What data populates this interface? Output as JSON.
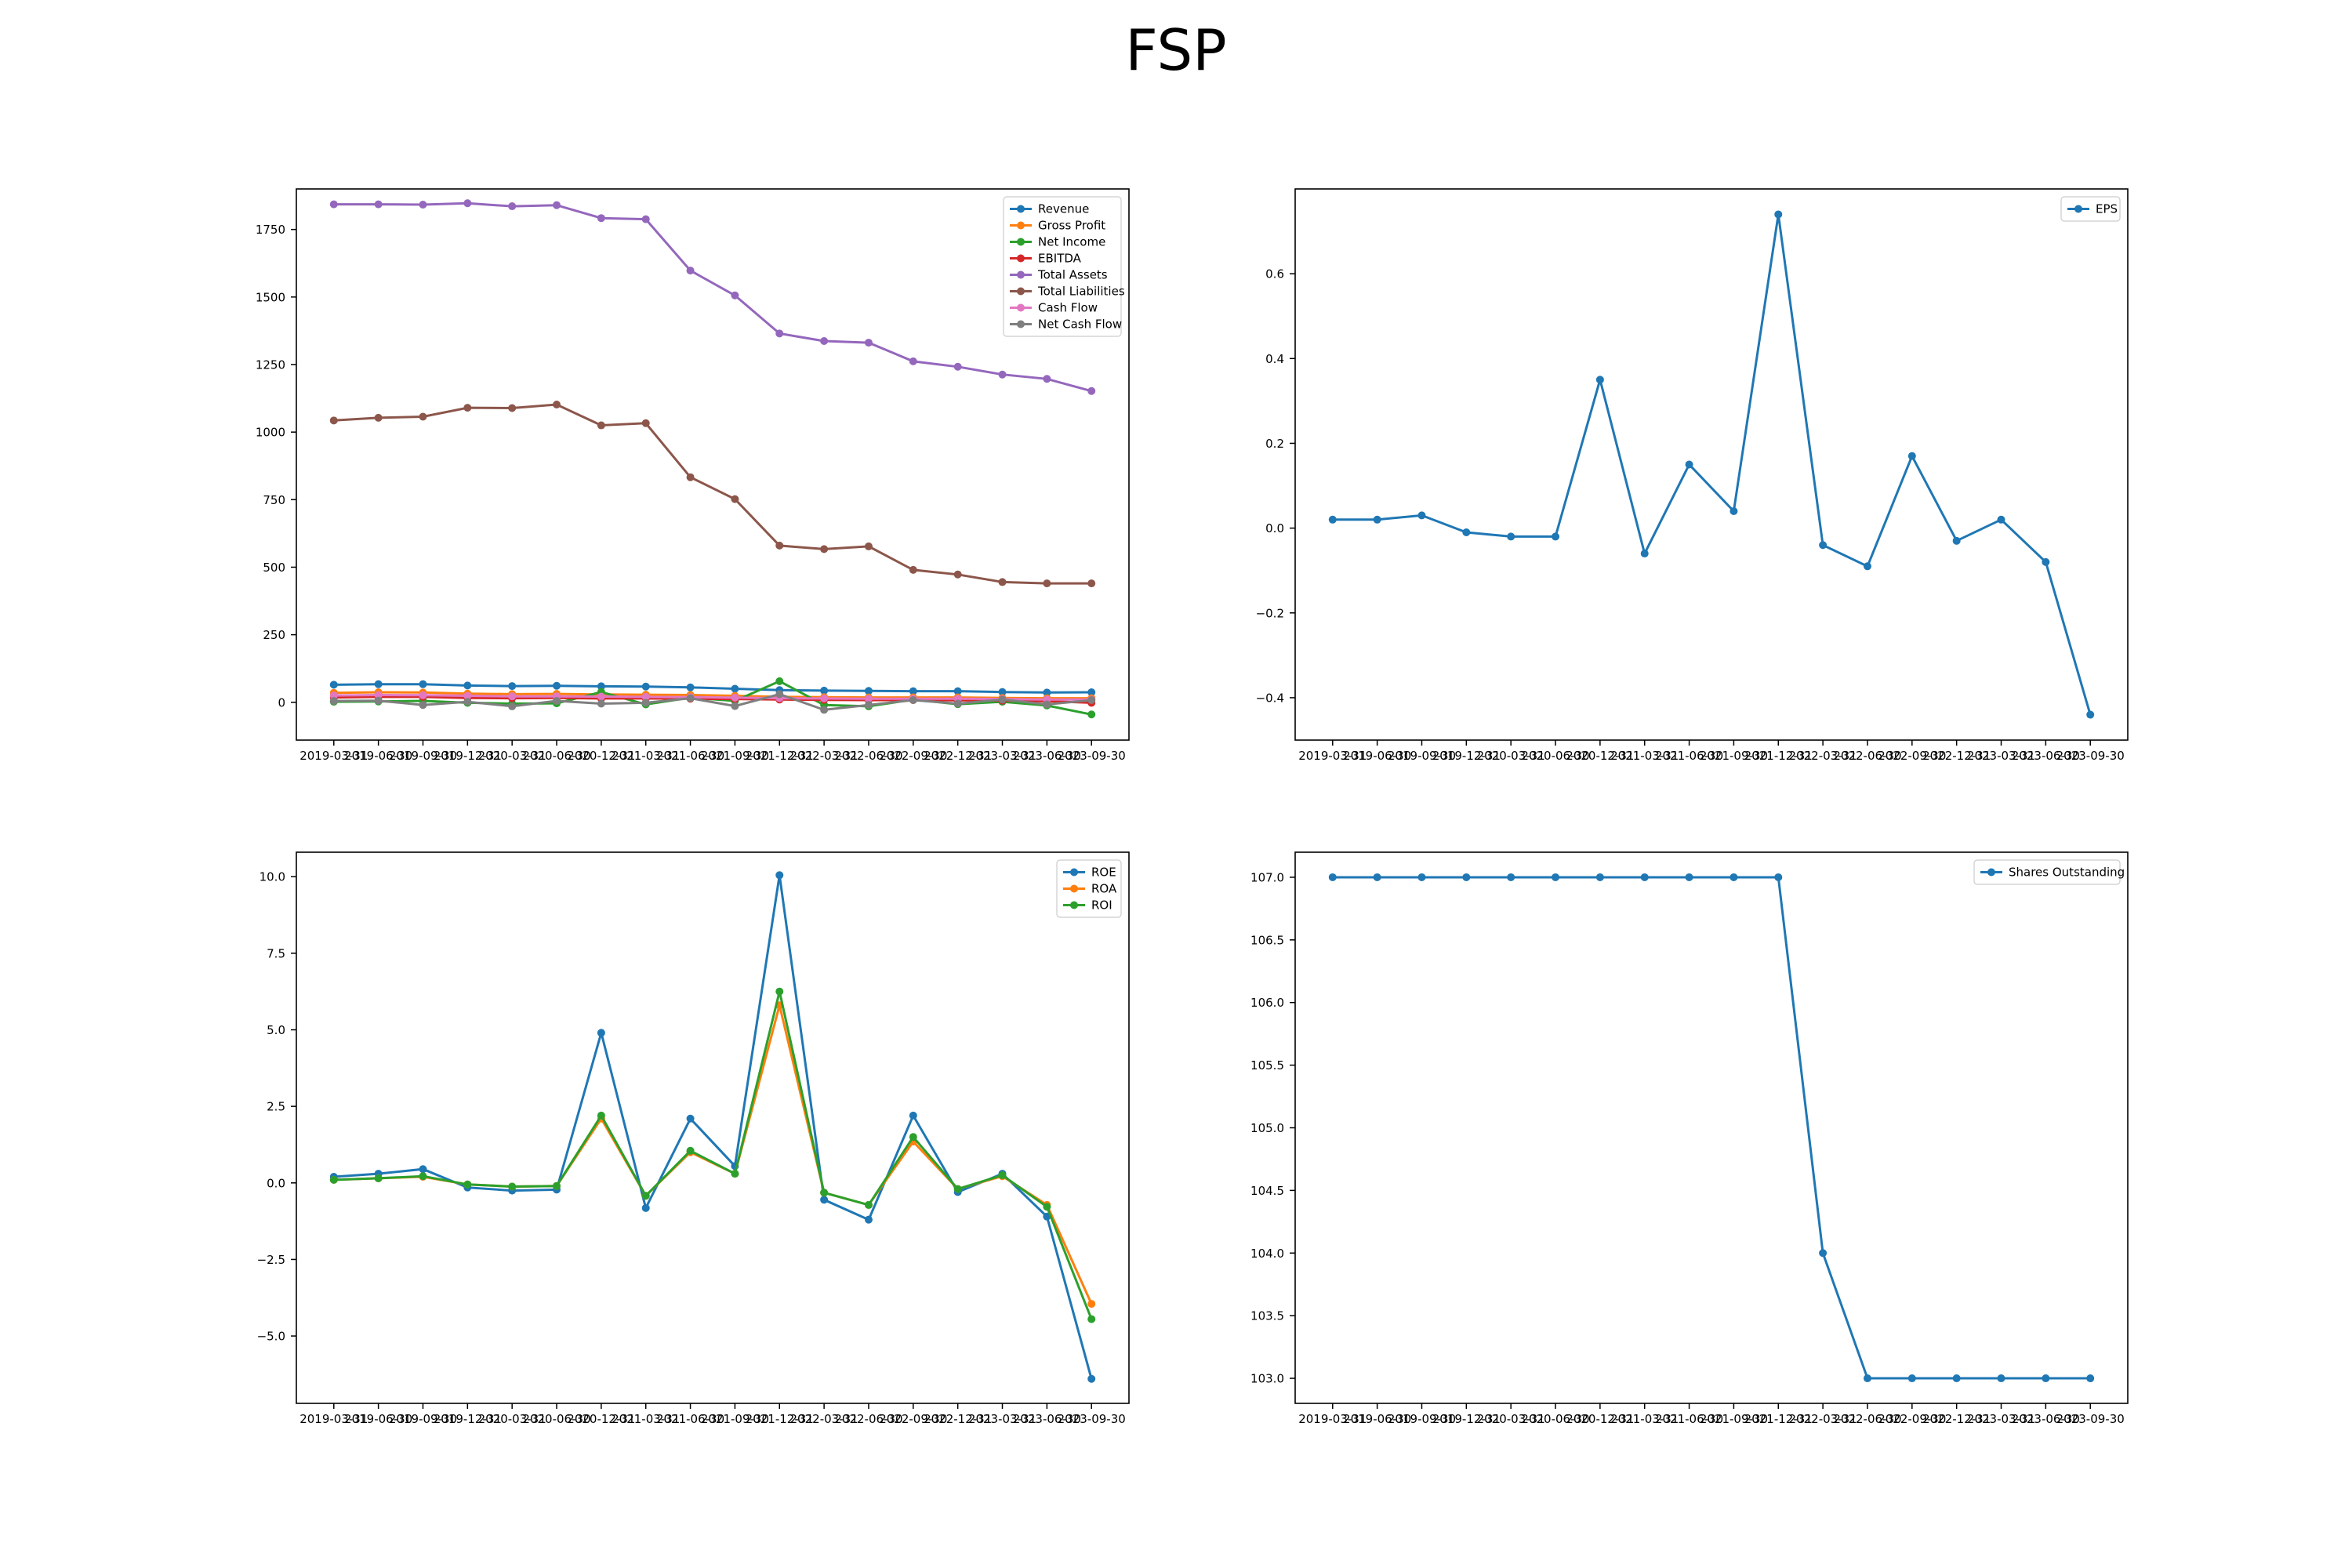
{
  "title": "FSP",
  "chart_data": [
    {
      "type": "line",
      "categories": [
        "2019-03-31",
        "2019-06-30",
        "2019-09-30",
        "2019-12-31",
        "2020-03-31",
        "2020-06-30",
        "2020-12-31",
        "2021-03-31",
        "2021-06-30",
        "2021-09-30",
        "2021-12-31",
        "2022-03-31",
        "2022-06-30",
        "2022-09-30",
        "2022-12-31",
        "2023-03-31",
        "2023-06-30",
        "2023-09-30"
      ],
      "ylim": [
        -140,
        1900
      ],
      "yticks": [
        0,
        250,
        500,
        750,
        1000,
        1250,
        1500,
        1750
      ],
      "legend": "top-right",
      "series": [
        {
          "name": "Revenue",
          "color": "#1f77b4",
          "values": [
            65,
            67,
            67,
            62,
            60,
            61,
            59,
            58,
            55,
            50,
            45,
            43,
            42,
            41,
            41,
            38,
            36,
            37
          ]
        },
        {
          "name": "Gross Profit",
          "color": "#ff7f0e",
          "values": [
            35,
            37,
            36,
            32,
            30,
            31,
            29,
            28,
            27,
            24,
            20,
            19,
            18,
            18,
            18,
            16,
            15,
            15
          ]
        },
        {
          "name": "Net Income",
          "color": "#2ca02c",
          "values": [
            2,
            3,
            5,
            -2,
            -5,
            -4,
            38,
            -8,
            17,
            5,
            78,
            -10,
            -15,
            10,
            -7,
            2,
            -12,
            -45
          ]
        },
        {
          "name": "EBITDA",
          "color": "#d62728",
          "values": [
            18,
            20,
            20,
            16,
            15,
            16,
            14,
            14,
            13,
            12,
            10,
            9,
            8,
            8,
            7,
            6,
            4,
            -2
          ]
        },
        {
          "name": "Total Assets",
          "color": "#9467bd",
          "values": [
            1843,
            1843,
            1842,
            1847,
            1836,
            1840,
            1792,
            1788,
            1598,
            1506,
            1365,
            1337,
            1331,
            1262,
            1242,
            1213,
            1197,
            1152
          ]
        },
        {
          "name": "Total Liabilities",
          "color": "#8c564b",
          "values": [
            1043,
            1053,
            1057,
            1090,
            1089,
            1102,
            1025,
            1033,
            833,
            752,
            580,
            567,
            577,
            490,
            473,
            445,
            440,
            440
          ]
        },
        {
          "name": "Cash Flow",
          "color": "#e377c2",
          "values": [
            25,
            27,
            26,
            24,
            22,
            22,
            21,
            20,
            19,
            17,
            15,
            14,
            13,
            13,
            13,
            12,
            10,
            10
          ]
        },
        {
          "name": "Net Cash Flow",
          "color": "#7f7f7f",
          "values": [
            5,
            6,
            -10,
            2,
            -15,
            5,
            -5,
            -2,
            15,
            -14,
            30,
            -28,
            -10,
            8,
            -5,
            10,
            -8,
            8
          ]
        }
      ]
    },
    {
      "type": "line",
      "categories": [
        "2019-03-31",
        "2019-06-30",
        "2019-09-30",
        "2019-12-31",
        "2020-03-31",
        "2020-06-30",
        "2020-12-31",
        "2021-03-31",
        "2021-06-30",
        "2021-09-30",
        "2021-12-31",
        "2022-03-31",
        "2022-06-30",
        "2022-09-30",
        "2022-12-31",
        "2023-03-31",
        "2023-06-30",
        "2023-09-30"
      ],
      "ylim": [
        -0.5,
        0.8
      ],
      "yticks": [
        -0.4,
        -0.2,
        0.0,
        0.2,
        0.4,
        0.6
      ],
      "legend": "top-right",
      "series": [
        {
          "name": "EPS",
          "color": "#1f77b4",
          "values": [
            0.02,
            0.02,
            0.03,
            -0.01,
            -0.02,
            -0.02,
            0.35,
            -0.06,
            0.15,
            0.04,
            0.74,
            -0.04,
            -0.09,
            0.17,
            -0.03,
            0.02,
            -0.08,
            -0.44
          ]
        }
      ]
    },
    {
      "type": "line",
      "categories": [
        "2019-03-31",
        "2019-06-30",
        "2019-09-30",
        "2019-12-31",
        "2020-03-31",
        "2020-06-30",
        "2020-12-31",
        "2021-03-31",
        "2021-06-30",
        "2021-09-30",
        "2021-12-31",
        "2022-03-31",
        "2022-06-30",
        "2022-09-30",
        "2022-12-31",
        "2023-03-31",
        "2023-06-30",
        "2023-09-30"
      ],
      "ylim": [
        -7.2,
        10.8
      ],
      "yticks": [
        -5.0,
        -2.5,
        0.0,
        2.5,
        5.0,
        7.5,
        10.0
      ],
      "legend": "top-right",
      "series": [
        {
          "name": "ROE",
          "color": "#1f77b4",
          "values": [
            0.2,
            0.3,
            0.45,
            -0.15,
            -0.25,
            -0.22,
            4.9,
            -0.82,
            2.1,
            0.55,
            10.05,
            -0.55,
            -1.2,
            2.2,
            -0.3,
            0.3,
            -1.1,
            -6.4
          ]
        },
        {
          "name": "ROA",
          "color": "#ff7f0e",
          "values": [
            0.1,
            0.15,
            0.2,
            -0.05,
            -0.12,
            -0.1,
            2.1,
            -0.42,
            1.0,
            0.3,
            5.8,
            -0.32,
            -0.72,
            1.35,
            -0.2,
            0.22,
            -0.72,
            -3.95
          ]
        },
        {
          "name": "ROI",
          "color": "#2ca02c",
          "values": [
            0.1,
            0.15,
            0.22,
            -0.05,
            -0.12,
            -0.1,
            2.2,
            -0.42,
            1.05,
            0.3,
            6.25,
            -0.32,
            -0.72,
            1.5,
            -0.2,
            0.25,
            -0.78,
            -4.45
          ]
        }
      ]
    },
    {
      "type": "line",
      "categories": [
        "2019-03-31",
        "2019-06-30",
        "2019-09-30",
        "2019-12-31",
        "2020-03-31",
        "2020-06-30",
        "2020-12-31",
        "2021-03-31",
        "2021-06-30",
        "2021-09-30",
        "2021-12-31",
        "2022-03-31",
        "2022-06-30",
        "2022-09-30",
        "2022-12-31",
        "2023-03-31",
        "2023-06-30",
        "2023-09-30"
      ],
      "ylim": [
        102.8,
        107.2
      ],
      "yticks": [
        103.0,
        103.5,
        104.0,
        104.5,
        105.0,
        105.5,
        106.0,
        106.5,
        107.0
      ],
      "legend": "top-right",
      "series": [
        {
          "name": "Shares Outstanding",
          "color": "#1f77b4",
          "values": [
            107,
            107,
            107,
            107,
            107,
            107,
            107,
            107,
            107,
            107,
            107,
            104,
            103,
            103,
            103,
            103,
            103,
            103
          ]
        }
      ]
    }
  ]
}
